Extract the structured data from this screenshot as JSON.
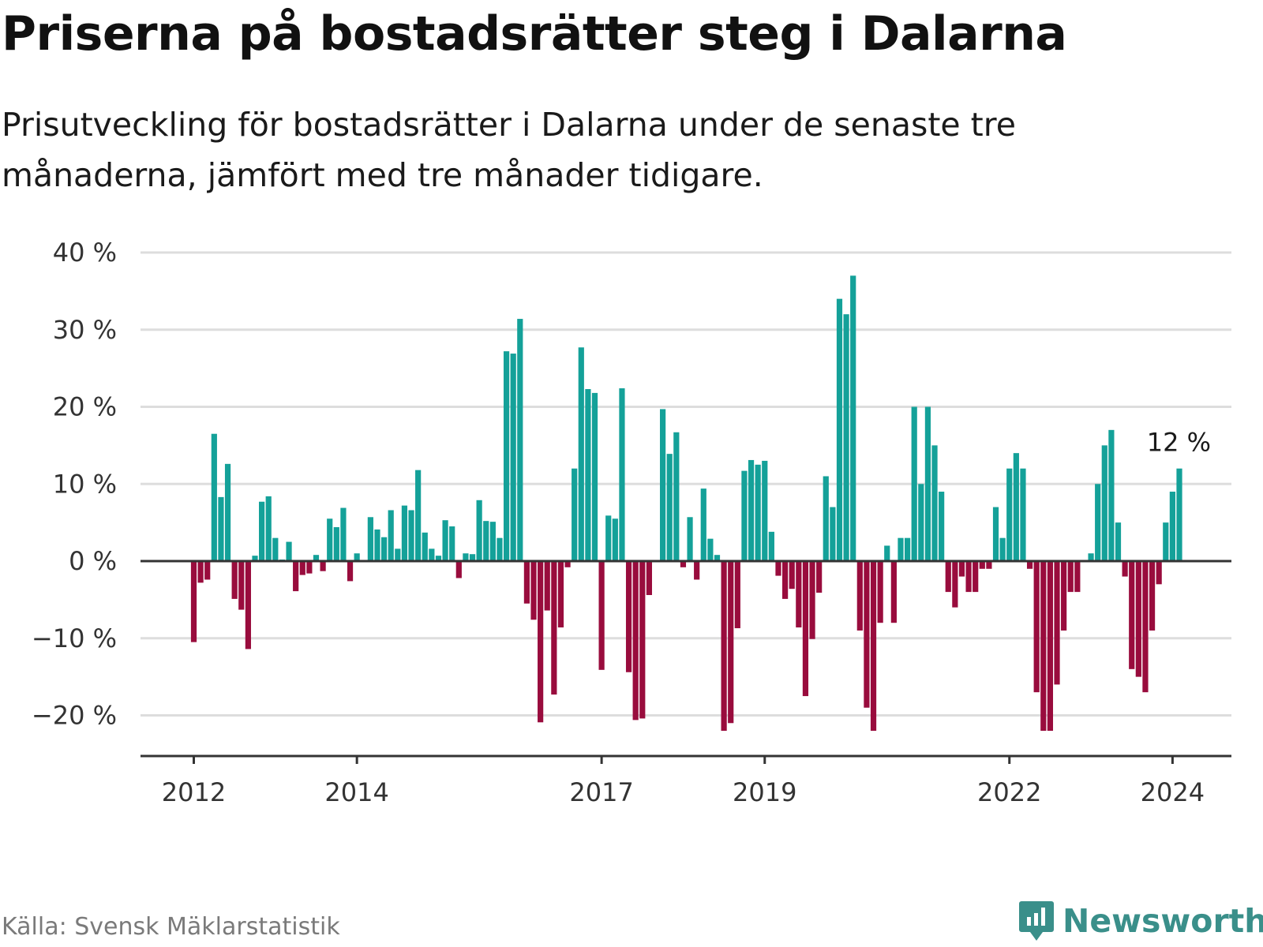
{
  "header": {
    "title": "Priserna på bostadsrätter steg i Dalarna",
    "subtitle": "Prisutveckling för bostadsrätter i Dalarna under de senaste tre månaderna, jämfört med tre månader tidigare."
  },
  "footer": {
    "source": "Källa: Svensk Mäklarstatistik",
    "brand": "Newsworthy",
    "brand_icon": "newsworthy-logo-icon"
  },
  "colors": {
    "positive": "#14a199",
    "negative": "#990c3d",
    "grid": "#dddddd",
    "axis": "#333333",
    "brand": "#3a8f8a"
  },
  "chart_data": {
    "type": "bar",
    "title": "Priserna på bostadsrätter steg i Dalarna",
    "xlabel": "",
    "ylabel": "",
    "ylim": [
      -25,
      40
    ],
    "y_ticks": [
      40,
      30,
      20,
      10,
      0,
      -10,
      -20
    ],
    "y_tick_labels": [
      "40 %",
      "30 %",
      "20 %",
      "10 %",
      "0 %",
      "−10 %",
      "−20 %"
    ],
    "x_ticks": [
      {
        "label": "2012",
        "index": 0
      },
      {
        "label": "2014",
        "index": 24
      },
      {
        "label": "2017",
        "index": 60
      },
      {
        "label": "2019",
        "index": 84
      },
      {
        "label": "2022",
        "index": 120
      },
      {
        "label": "2024",
        "index": 144
      }
    ],
    "start": "2012-01",
    "end": "2024-01",
    "unit": "%",
    "last_value_label": "12 %",
    "values": [
      -10.5,
      -2.8,
      -2.4,
      16.5,
      8.3,
      12.6,
      -4.9,
      -6.3,
      -11.4,
      0.7,
      7.7,
      8.4,
      3.0,
      0.2,
      2.5,
      -3.9,
      -1.8,
      -1.6,
      0.8,
      -1.3,
      5.5,
      4.4,
      6.9,
      -2.6,
      1.0,
      0.0,
      5.7,
      4.1,
      3.1,
      6.6,
      1.6,
      7.2,
      6.6,
      11.8,
      3.7,
      1.6,
      0.7,
      5.3,
      4.5,
      -2.2,
      1.0,
      0.9,
      7.9,
      5.2,
      5.1,
      3.0,
      27.2,
      26.9,
      31.4,
      -5.5,
      -7.6,
      -20.9,
      -6.4,
      -17.3,
      -8.6,
      -0.8,
      12.0,
      27.7,
      22.3,
      21.8,
      -14.1,
      5.9,
      5.5,
      22.4,
      -14.4,
      -20.6,
      -20.4,
      -4.4,
      0.0,
      19.7,
      13.9,
      16.7,
      -0.8,
      5.7,
      -2.4,
      9.4,
      2.9,
      0.8,
      -22.0,
      -21.0,
      -8.7,
      11.7,
      13.1,
      12.5,
      13.0,
      3.8,
      -1.9,
      -4.9,
      -3.6,
      -8.6,
      -17.5,
      -10.1,
      -4.1,
      11.0,
      7.0,
      34.0,
      32.0,
      37.0,
      -9.0,
      -19.0,
      -22.0,
      -8.0,
      2.0,
      -8.0,
      3.0,
      3.0,
      20.0,
      10.0,
      20.0,
      15.0,
      9.0,
      -4.0,
      -6.0,
      -2.0,
      -4.0,
      -4.0,
      -1.0,
      -1.0,
      7.0,
      3.0,
      12.0,
      14.0,
      12.0,
      -1.0,
      -17.0,
      -22.0,
      -22.0,
      -16.0,
      -9.0,
      -4.0,
      -4.0,
      0.0,
      1.0,
      10.0,
      15.0,
      17.0,
      5.0,
      -2.0,
      -14.0,
      -15.0,
      -17.0,
      -9.0,
      -3.0,
      5.0,
      9.0,
      12.0
    ]
  }
}
